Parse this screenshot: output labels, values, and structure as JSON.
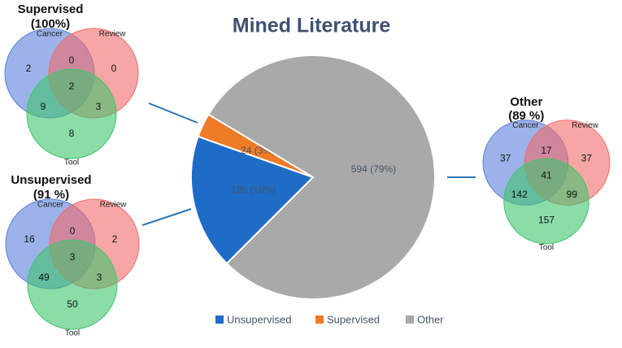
{
  "chart_data": [
    {
      "type": "pie",
      "title": "Mined Literature",
      "categories": [
        "Unsupervised",
        "Supervised",
        "Other"
      ],
      "values": [
        135,
        24,
        594
      ],
      "value_labels": [
        "135 (18%)",
        "24 (3%)",
        "594 (79%)"
      ],
      "colors": [
        "#1f6cc6",
        "#f07b27",
        "#a9a9a9"
      ],
      "legend": "bottom"
    },
    {
      "type": "venn",
      "title": "Supervised",
      "subtitle": "(100%)",
      "sets": [
        "Cancer",
        "Review",
        "Tool"
      ],
      "values": [
        2,
        0,
        8,
        0,
        9,
        3,
        2
      ],
      "colors": [
        "#5a7fd8",
        "#f26a6a",
        "#3ec46c"
      ]
    },
    {
      "type": "venn",
      "title": "Unsupervised",
      "subtitle": "(91 %)",
      "sets": [
        "Cancer",
        "Review",
        "Tool"
      ],
      "values": [
        16,
        2,
        50,
        0,
        49,
        3,
        3
      ],
      "colors": [
        "#5a7fd8",
        "#f26a6a",
        "#3ec46c"
      ]
    },
    {
      "type": "venn",
      "title": "Other",
      "subtitle": "(89 %)",
      "sets": [
        "Cancer",
        "Review",
        "Tool"
      ],
      "values": [
        37,
        37,
        157,
        17,
        142,
        99,
        41
      ],
      "colors": [
        "#5a7fd8",
        "#f26a6a",
        "#3ec46c"
      ]
    }
  ]
}
